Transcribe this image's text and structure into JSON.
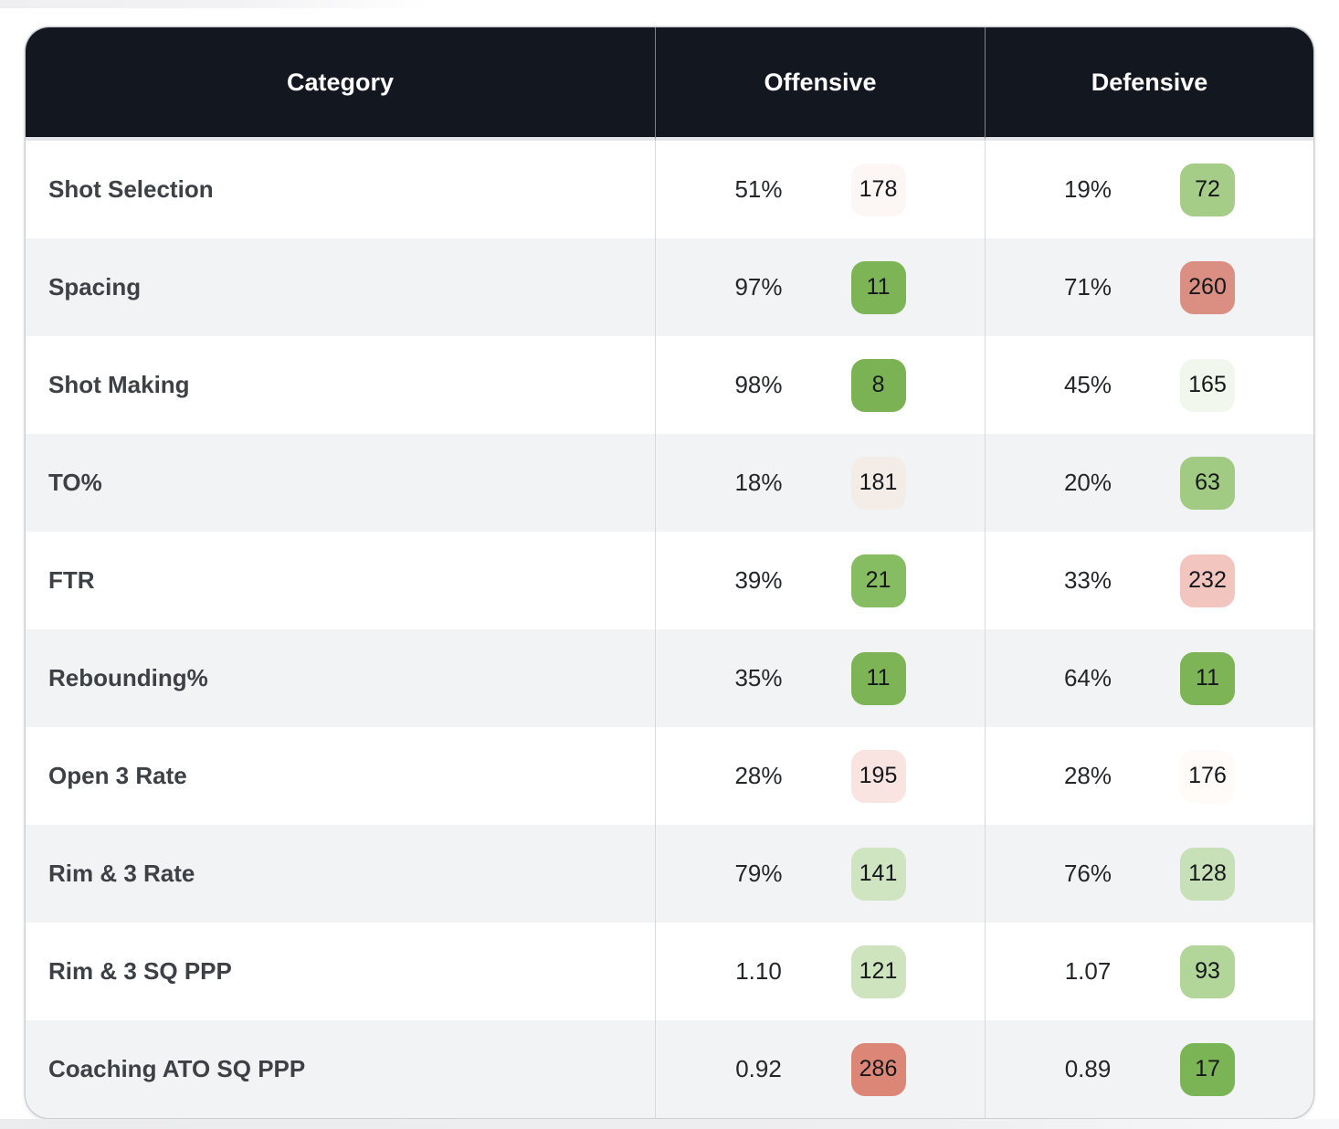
{
  "page": {
    "background": "#ffffff",
    "accent_green": "#7CB456",
    "accent_red": "#DC8678",
    "neutral_badge": "#FCF7F4"
  },
  "table": {
    "header_bg": "#131720",
    "header_text_color": "#ffffff",
    "row_alt_bg": "#F2F3F5",
    "headers": {
      "category": "Category",
      "offensive": "Offensive",
      "defensive": "Defensive"
    },
    "rows": [
      {
        "category": "Shot Selection",
        "offensive": {
          "value": "51%",
          "rank": "178",
          "color": "#FCF7F4"
        },
        "defensive": {
          "value": "19%",
          "rank": "72",
          "color": "#A5CD87"
        }
      },
      {
        "category": "Spacing",
        "offensive": {
          "value": "97%",
          "rank": "11",
          "color": "#7CB456"
        },
        "defensive": {
          "value": "71%",
          "rank": "260",
          "color": "#DA8F82"
        }
      },
      {
        "category": "Shot Making",
        "offensive": {
          "value": "98%",
          "rank": "8",
          "color": "#7BB354"
        },
        "defensive": {
          "value": "45%",
          "rank": "165",
          "color": "#F1F7EC"
        }
      },
      {
        "category": "TO%",
        "offensive": {
          "value": "18%",
          "rank": "181",
          "color": "#F4EDE7"
        },
        "defensive": {
          "value": "20%",
          "rank": "63",
          "color": "#A1CA82"
        }
      },
      {
        "category": "FTR",
        "offensive": {
          "value": "39%",
          "rank": "21",
          "color": "#86BC62"
        },
        "defensive": {
          "value": "33%",
          "rank": "232",
          "color": "#F2C5BE"
        }
      },
      {
        "category": "Rebounding%",
        "offensive": {
          "value": "35%",
          "rank": "11",
          "color": "#7CB456"
        },
        "defensive": {
          "value": "64%",
          "rank": "11",
          "color": "#7CB456"
        }
      },
      {
        "category": "Open 3 Rate",
        "offensive": {
          "value": "28%",
          "rank": "195",
          "color": "#FAE4E1"
        },
        "defensive": {
          "value": "28%",
          "rank": "176",
          "color": "#FEFBF8"
        }
      },
      {
        "category": "Rim & 3 Rate",
        "offensive": {
          "value": "79%",
          "rank": "141",
          "color": "#CFE4C0"
        },
        "defensive": {
          "value": "76%",
          "rank": "128",
          "color": "#C8E0B8"
        }
      },
      {
        "category": "Rim & 3 SQ PPP",
        "offensive": {
          "value": "1.10",
          "rank": "121",
          "color": "#CEE4BF"
        },
        "defensive": {
          "value": "1.07",
          "rank": "93",
          "color": "#B2D599"
        }
      },
      {
        "category": "Coaching ATO SQ PPP",
        "offensive": {
          "value": "0.92",
          "rank": "286",
          "color": "#DC8678"
        },
        "defensive": {
          "value": "0.89",
          "rank": "17",
          "color": "#7BB454"
        }
      }
    ]
  }
}
